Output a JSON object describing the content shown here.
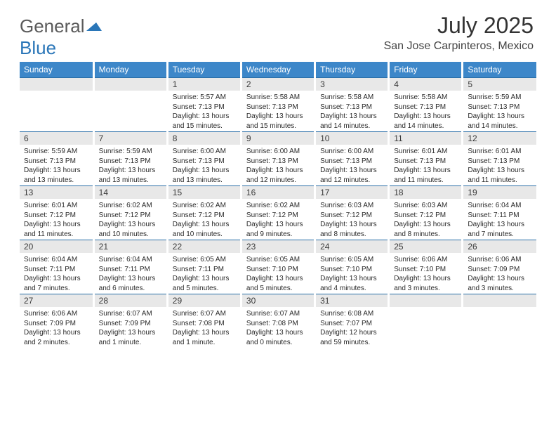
{
  "logo": {
    "text1": "General",
    "text2": "Blue"
  },
  "title": "July 2025",
  "location": "San Jose Carpinteros, Mexico",
  "header_bg": "#3d87c9",
  "header_text_color": "#ffffff",
  "daynum_bg": "#e8e8e8",
  "week_divider_color": "#2a6fa8",
  "days_of_week": [
    "Sunday",
    "Monday",
    "Tuesday",
    "Wednesday",
    "Thursday",
    "Friday",
    "Saturday"
  ],
  "weeks": [
    [
      {
        "n": "",
        "sr": "",
        "ss": "",
        "dl": ""
      },
      {
        "n": "",
        "sr": "",
        "ss": "",
        "dl": ""
      },
      {
        "n": "1",
        "sr": "5:57 AM",
        "ss": "7:13 PM",
        "dl": "13 hours and 15 minutes."
      },
      {
        "n": "2",
        "sr": "5:58 AM",
        "ss": "7:13 PM",
        "dl": "13 hours and 15 minutes."
      },
      {
        "n": "3",
        "sr": "5:58 AM",
        "ss": "7:13 PM",
        "dl": "13 hours and 14 minutes."
      },
      {
        "n": "4",
        "sr": "5:58 AM",
        "ss": "7:13 PM",
        "dl": "13 hours and 14 minutes."
      },
      {
        "n": "5",
        "sr": "5:59 AM",
        "ss": "7:13 PM",
        "dl": "13 hours and 14 minutes."
      }
    ],
    [
      {
        "n": "6",
        "sr": "5:59 AM",
        "ss": "7:13 PM",
        "dl": "13 hours and 13 minutes."
      },
      {
        "n": "7",
        "sr": "5:59 AM",
        "ss": "7:13 PM",
        "dl": "13 hours and 13 minutes."
      },
      {
        "n": "8",
        "sr": "6:00 AM",
        "ss": "7:13 PM",
        "dl": "13 hours and 13 minutes."
      },
      {
        "n": "9",
        "sr": "6:00 AM",
        "ss": "7:13 PM",
        "dl": "13 hours and 12 minutes."
      },
      {
        "n": "10",
        "sr": "6:00 AM",
        "ss": "7:13 PM",
        "dl": "13 hours and 12 minutes."
      },
      {
        "n": "11",
        "sr": "6:01 AM",
        "ss": "7:13 PM",
        "dl": "13 hours and 11 minutes."
      },
      {
        "n": "12",
        "sr": "6:01 AM",
        "ss": "7:13 PM",
        "dl": "13 hours and 11 minutes."
      }
    ],
    [
      {
        "n": "13",
        "sr": "6:01 AM",
        "ss": "7:12 PM",
        "dl": "13 hours and 11 minutes."
      },
      {
        "n": "14",
        "sr": "6:02 AM",
        "ss": "7:12 PM",
        "dl": "13 hours and 10 minutes."
      },
      {
        "n": "15",
        "sr": "6:02 AM",
        "ss": "7:12 PM",
        "dl": "13 hours and 10 minutes."
      },
      {
        "n": "16",
        "sr": "6:02 AM",
        "ss": "7:12 PM",
        "dl": "13 hours and 9 minutes."
      },
      {
        "n": "17",
        "sr": "6:03 AM",
        "ss": "7:12 PM",
        "dl": "13 hours and 8 minutes."
      },
      {
        "n": "18",
        "sr": "6:03 AM",
        "ss": "7:12 PM",
        "dl": "13 hours and 8 minutes."
      },
      {
        "n": "19",
        "sr": "6:04 AM",
        "ss": "7:11 PM",
        "dl": "13 hours and 7 minutes."
      }
    ],
    [
      {
        "n": "20",
        "sr": "6:04 AM",
        "ss": "7:11 PM",
        "dl": "13 hours and 7 minutes."
      },
      {
        "n": "21",
        "sr": "6:04 AM",
        "ss": "7:11 PM",
        "dl": "13 hours and 6 minutes."
      },
      {
        "n": "22",
        "sr": "6:05 AM",
        "ss": "7:11 PM",
        "dl": "13 hours and 5 minutes."
      },
      {
        "n": "23",
        "sr": "6:05 AM",
        "ss": "7:10 PM",
        "dl": "13 hours and 5 minutes."
      },
      {
        "n": "24",
        "sr": "6:05 AM",
        "ss": "7:10 PM",
        "dl": "13 hours and 4 minutes."
      },
      {
        "n": "25",
        "sr": "6:06 AM",
        "ss": "7:10 PM",
        "dl": "13 hours and 3 minutes."
      },
      {
        "n": "26",
        "sr": "6:06 AM",
        "ss": "7:09 PM",
        "dl": "13 hours and 3 minutes."
      }
    ],
    [
      {
        "n": "27",
        "sr": "6:06 AM",
        "ss": "7:09 PM",
        "dl": "13 hours and 2 minutes."
      },
      {
        "n": "28",
        "sr": "6:07 AM",
        "ss": "7:09 PM",
        "dl": "13 hours and 1 minute."
      },
      {
        "n": "29",
        "sr": "6:07 AM",
        "ss": "7:08 PM",
        "dl": "13 hours and 1 minute."
      },
      {
        "n": "30",
        "sr": "6:07 AM",
        "ss": "7:08 PM",
        "dl": "13 hours and 0 minutes."
      },
      {
        "n": "31",
        "sr": "6:08 AM",
        "ss": "7:07 PM",
        "dl": "12 hours and 59 minutes."
      },
      {
        "n": "",
        "sr": "",
        "ss": "",
        "dl": ""
      },
      {
        "n": "",
        "sr": "",
        "ss": "",
        "dl": ""
      }
    ]
  ],
  "labels": {
    "sunrise": "Sunrise:",
    "sunset": "Sunset:",
    "daylight": "Daylight:"
  }
}
